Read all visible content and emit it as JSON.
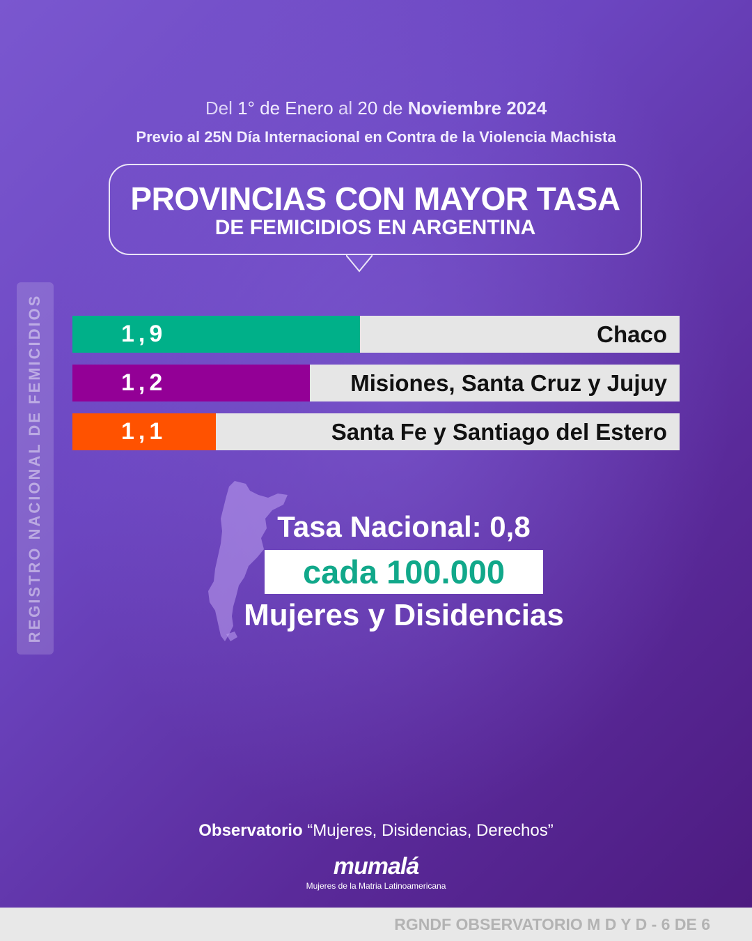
{
  "header": {
    "date_prefix_1": "Del",
    "date_part_1": "1° de Enero",
    "date_prefix_2": "al",
    "date_part_2": "20 de",
    "date_bold": "Noviembre 2024",
    "subtitle": "Previo al 25N Día Internacional en Contra de la Violencia Machista"
  },
  "bubble": {
    "title_line1": "PROVINCIAS CON MAYOR TASA",
    "title_line2": "DE FEMICIDIOS EN ARGENTINA"
  },
  "side_tag": {
    "text": "REGISTRO NACIONAL DE FEMICIDIOS"
  },
  "chart_data": {
    "type": "bar",
    "categories": [
      "Chaco",
      "Misiones, Santa Cruz y Jujuy",
      "Santa Fe y Santiago del Estero"
    ],
    "values": [
      1.9,
      1.2,
      1.1
    ],
    "value_labels": [
      "1,9",
      "1,2",
      "1,1"
    ],
    "colors": [
      "#00b089",
      "#930096",
      "#ff5200"
    ],
    "background_color": "#e6e6e6",
    "orientation": "horizontal"
  },
  "national": {
    "title": "Tasa Nacional: 0,8",
    "per": "cada 100.000",
    "population": "Mujeres y Disidencias"
  },
  "footer": {
    "observatorio_bold": "Observatorio",
    "observatorio_rest": "“Mujeres, Disidencias, Derechos”",
    "logo": "mumalá",
    "logo_tagline": "Mujeres de la Matria Latinoamericana",
    "strip_text": "RGNDF OBSERVATORIO M D Y D - 6 DE 6"
  },
  "colors": {
    "accent_green": "#11a88a",
    "bg_purple": "#6c46c1"
  }
}
